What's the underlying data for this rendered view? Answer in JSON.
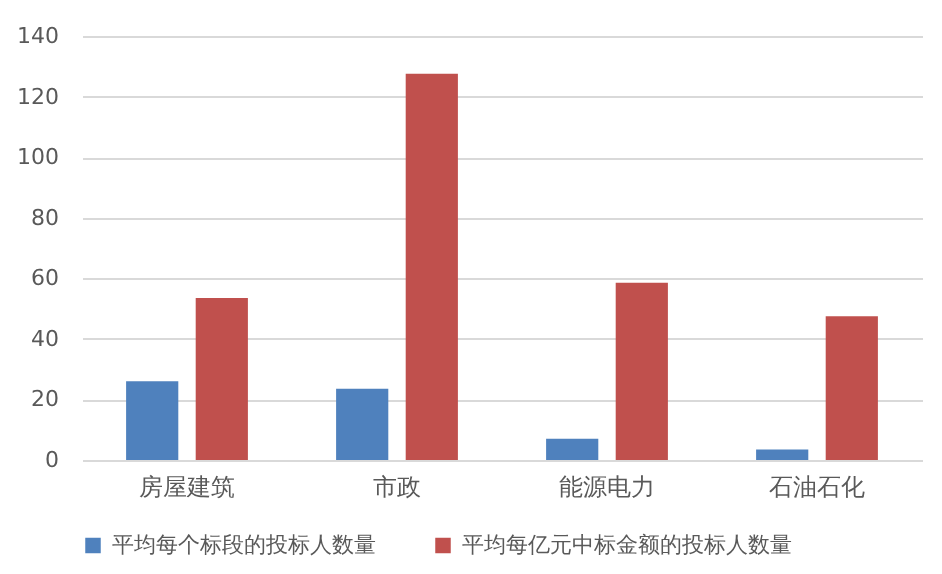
{
  "chart_data": {
    "type": "bar",
    "categories": [
      "房屋建筑",
      "市政",
      "能源电力",
      "石油石化"
    ],
    "series": [
      {
        "name": "平均每个标段的投标人数量",
        "color": "#4f81bd",
        "values": [
          26,
          23.5,
          7,
          3.5
        ]
      },
      {
        "name": "平均每亿元中标金额的投标人数量",
        "color": "#c0504d",
        "values": [
          53.5,
          127.5,
          58.5,
          47.5
        ]
      }
    ],
    "ylim": [
      0,
      140
    ],
    "yticks": [
      0,
      20,
      40,
      60,
      80,
      100,
      120,
      140
    ],
    "grid": "y",
    "legend": "bottom"
  }
}
